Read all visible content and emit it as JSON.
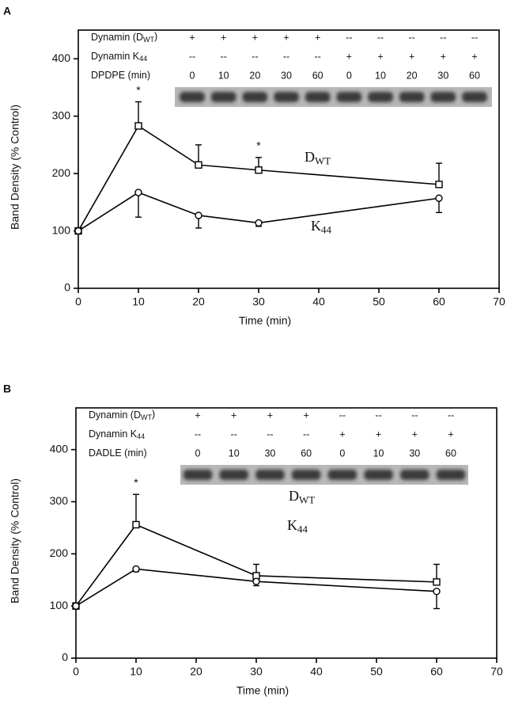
{
  "chart_data": [
    {
      "type": "line",
      "panel": "A",
      "x_label": "Time (min)",
      "y_label": "Band Density (% Control)",
      "x": [
        0,
        10,
        20,
        30,
        60
      ],
      "xlim": [
        0,
        70
      ],
      "xticks": [
        0,
        10,
        20,
        30,
        40,
        50,
        60,
        70
      ],
      "ylim": [
        0,
        450
      ],
      "yticks": [
        0,
        100,
        200,
        300,
        400
      ],
      "series": [
        {
          "name": "D",
          "name_sub": "WT",
          "color": "#000000",
          "marker": "square",
          "error_direction": "up",
          "values": [
            100,
            283,
            215,
            206,
            181
          ],
          "errors": [
            0,
            42,
            35,
            22,
            37
          ],
          "significance": [
            null,
            "*",
            null,
            "*",
            null
          ]
        },
        {
          "name": "K",
          "name_sub": "44",
          "color": "#000000",
          "marker": "circle",
          "error_direction": "down",
          "values": [
            100,
            167,
            127,
            114,
            157
          ],
          "errors": [
            0,
            43,
            22,
            6,
            25
          ],
          "significance": [
            null,
            null,
            null,
            null,
            null
          ]
        }
      ],
      "blot": {
        "rows": [
          {
            "label": [
              "Dynamin (D",
              "WT",
              ")"
            ],
            "cells": [
              "+",
              "+",
              "+",
              "+",
              "+",
              "--",
              "--",
              "--",
              "--",
              "--"
            ]
          },
          {
            "label": [
              "Dynamin K",
              "44"
            ],
            "cells": [
              "--",
              "--",
              "--",
              "--",
              "--",
              "+",
              "+",
              "+",
              "+",
              "+"
            ]
          },
          {
            "label": [
              "DPDPE (min)"
            ],
            "cells": [
              0,
              10,
              20,
              30,
              60,
              0,
              10,
              20,
              30,
              60
            ]
          }
        ]
      }
    },
    {
      "type": "line",
      "panel": "B",
      "x_label": "Time (min)",
      "y_label": "Band Density (% Control)",
      "x": [
        0,
        10,
        30,
        60
      ],
      "xlim": [
        0,
        70
      ],
      "xticks": [
        0,
        10,
        20,
        30,
        40,
        50,
        60,
        70
      ],
      "ylim": [
        0,
        480
      ],
      "yticks": [
        0,
        100,
        200,
        300,
        400
      ],
      "series": [
        {
          "name": "D",
          "name_sub": "WT",
          "color": "#000000",
          "marker": "square",
          "error_direction": "up",
          "values": [
            100,
            256,
            158,
            146
          ],
          "errors": [
            0,
            58,
            22,
            34
          ],
          "significance": [
            null,
            "*",
            null,
            null
          ]
        },
        {
          "name": "K",
          "name_sub": "44",
          "color": "#000000",
          "marker": "circle",
          "error_direction": "down",
          "values": [
            100,
            171,
            147,
            128
          ],
          "errors": [
            0,
            5,
            8,
            33
          ],
          "significance": [
            null,
            null,
            null,
            null
          ]
        }
      ],
      "blot": {
        "rows": [
          {
            "label": [
              "Dynamin (D",
              "WT",
              ")"
            ],
            "cells": [
              "+",
              "+",
              "+",
              "+",
              "--",
              "--",
              "--",
              "--"
            ]
          },
          {
            "label": [
              "Dynamin K",
              "44"
            ],
            "cells": [
              "--",
              "--",
              "--",
              "--",
              "+",
              "+",
              "+",
              "+"
            ]
          },
          {
            "label": [
              "DADLE (min)"
            ],
            "cells": [
              0,
              10,
              30,
              60,
              0,
              10,
              30,
              60
            ]
          }
        ]
      }
    }
  ]
}
